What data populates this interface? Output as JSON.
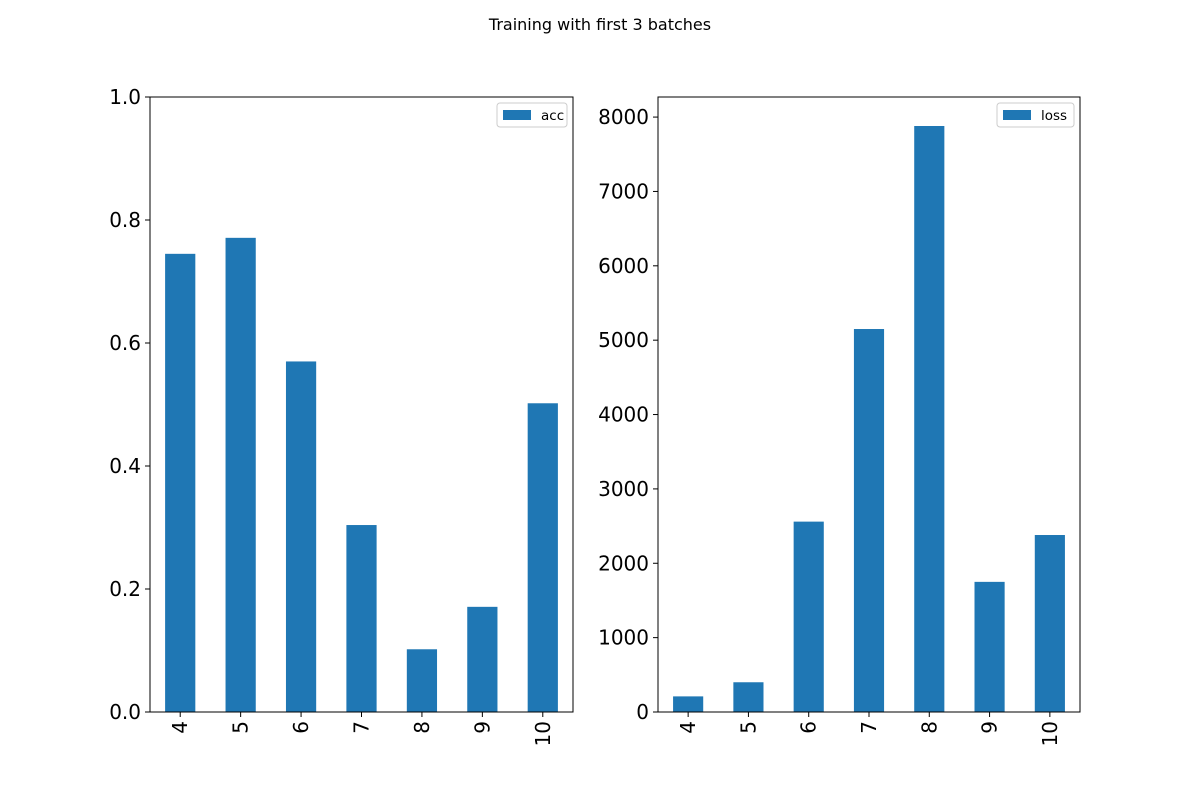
{
  "figure": {
    "suptitle": "Training with first 3 batches"
  },
  "colors": {
    "bar": "#1f77b4",
    "axes": "#000000",
    "legend_border": "#cccccc"
  },
  "chart_data": [
    {
      "type": "bar",
      "title": "",
      "xlabel": "",
      "ylabel": "",
      "categories": [
        "4",
        "5",
        "6",
        "7",
        "8",
        "9",
        "10"
      ],
      "series": [
        {
          "name": "acc",
          "values": [
            0.745,
            0.771,
            0.57,
            0.304,
            0.102,
            0.171,
            0.502
          ]
        }
      ],
      "ylim": [
        0,
        1.0
      ],
      "yticks": [
        0.0,
        0.2,
        0.4,
        0.6,
        0.8,
        1.0
      ],
      "ytick_labels": [
        "0.0",
        "0.2",
        "0.4",
        "0.6",
        "0.8",
        "1.0"
      ],
      "grid": false,
      "legend": "top-right",
      "xtick_rotation": "vertical"
    },
    {
      "type": "bar",
      "title": "",
      "xlabel": "",
      "ylabel": "",
      "categories": [
        "4",
        "5",
        "6",
        "7",
        "8",
        "9",
        "10"
      ],
      "series": [
        {
          "name": "loss",
          "values": [
            210,
            400,
            2560,
            5150,
            7880,
            1750,
            2380
          ]
        }
      ],
      "ylim": [
        0,
        8270
      ],
      "yticks": [
        0,
        1000,
        2000,
        3000,
        4000,
        5000,
        6000,
        7000,
        8000
      ],
      "ytick_labels": [
        "0",
        "1000",
        "2000",
        "3000",
        "4000",
        "5000",
        "6000",
        "7000",
        "8000"
      ],
      "grid": false,
      "legend": "top-right",
      "xtick_rotation": "vertical"
    }
  ]
}
